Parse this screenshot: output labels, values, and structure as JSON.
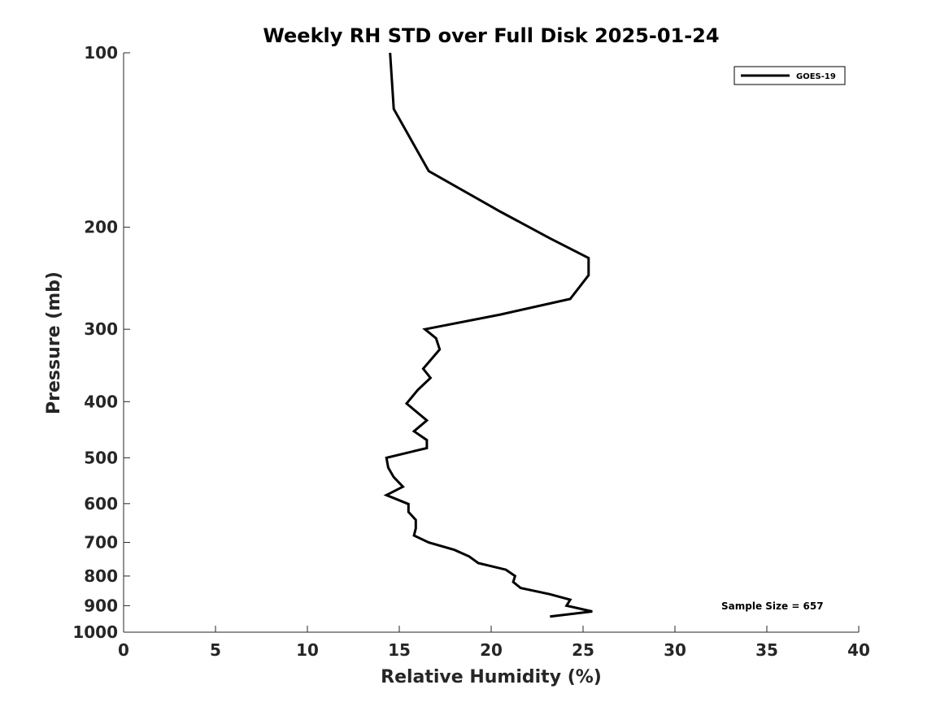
{
  "chart_data": {
    "type": "line",
    "title": "Weekly RH STD over Full Disk 2025-01-24",
    "xlabel": "Relative Humidity (%)",
    "ylabel": "Pressure (mb)",
    "xlim": [
      0,
      40
    ],
    "ylim": [
      100,
      1000
    ],
    "y_scale": "log",
    "y_reversed": true,
    "grid": false,
    "legend_position": "top-right",
    "x_ticks": [
      0,
      5,
      10,
      15,
      20,
      25,
      30,
      35,
      40
    ],
    "y_ticks": [
      100,
      200,
      300,
      400,
      500,
      600,
      700,
      800,
      900,
      1000
    ],
    "annotation": "Sample Size = 657",
    "series": [
      {
        "name": "GOES-19",
        "color": "#000000",
        "points": [
          [
            14.5,
            100
          ],
          [
            14.7,
            125
          ],
          [
            16.6,
            160
          ],
          [
            20.5,
            188
          ],
          [
            23.2,
            209
          ],
          [
            25.3,
            226
          ],
          [
            25.3,
            242
          ],
          [
            24.3,
            266
          ],
          [
            20.5,
            283
          ],
          [
            16.4,
            300
          ],
          [
            17.0,
            311
          ],
          [
            17.2,
            325
          ],
          [
            16.3,
            351
          ],
          [
            16.7,
            364
          ],
          [
            16.0,
            382
          ],
          [
            15.4,
            403
          ],
          [
            16.5,
            431
          ],
          [
            15.8,
            450
          ],
          [
            16.5,
            466
          ],
          [
            16.5,
            481
          ],
          [
            14.3,
            500
          ],
          [
            14.4,
            520
          ],
          [
            14.7,
            540
          ],
          [
            15.2,
            561
          ],
          [
            14.3,
            580
          ],
          [
            15.5,
            601
          ],
          [
            15.5,
            620
          ],
          [
            15.9,
            640
          ],
          [
            15.9,
            662
          ],
          [
            15.8,
            681
          ],
          [
            16.6,
            700
          ],
          [
            18.0,
            721
          ],
          [
            18.8,
            740
          ],
          [
            19.3,
            760
          ],
          [
            20.8,
            780
          ],
          [
            21.3,
            800
          ],
          [
            21.2,
            819
          ],
          [
            21.6,
            839
          ],
          [
            23.2,
            860
          ],
          [
            24.3,
            879
          ],
          [
            24.1,
            900
          ],
          [
            25.5,
            921
          ],
          [
            23.2,
            940
          ]
        ]
      }
    ]
  }
}
